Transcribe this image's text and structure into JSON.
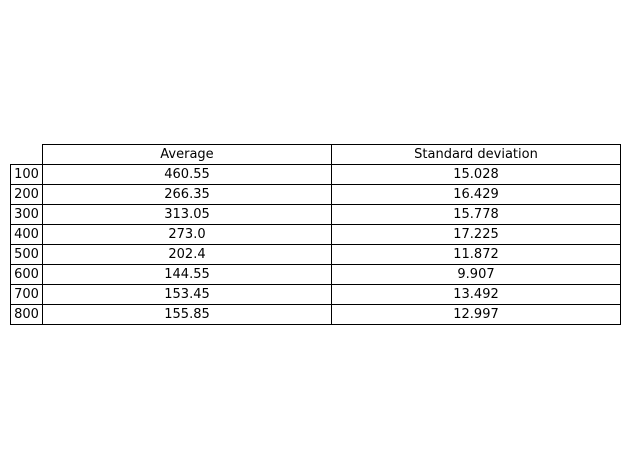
{
  "chart_data": {
    "type": "table",
    "columns": [
      "Average",
      "Standard deviation"
    ],
    "rows": [
      {
        "label": "100",
        "values": [
          "460.55",
          "15.028"
        ]
      },
      {
        "label": "200",
        "values": [
          "266.35",
          "16.429"
        ]
      },
      {
        "label": "300",
        "values": [
          "313.05",
          "15.778"
        ]
      },
      {
        "label": "400",
        "values": [
          "273.0",
          "17.225"
        ]
      },
      {
        "label": "500",
        "values": [
          "202.4",
          "11.872"
        ]
      },
      {
        "label": "600",
        "values": [
          "144.55",
          "9.907"
        ]
      },
      {
        "label": "700",
        "values": [
          "153.45",
          "13.492"
        ]
      },
      {
        "label": "800",
        "values": [
          "155.85",
          "12.997"
        ]
      }
    ]
  }
}
